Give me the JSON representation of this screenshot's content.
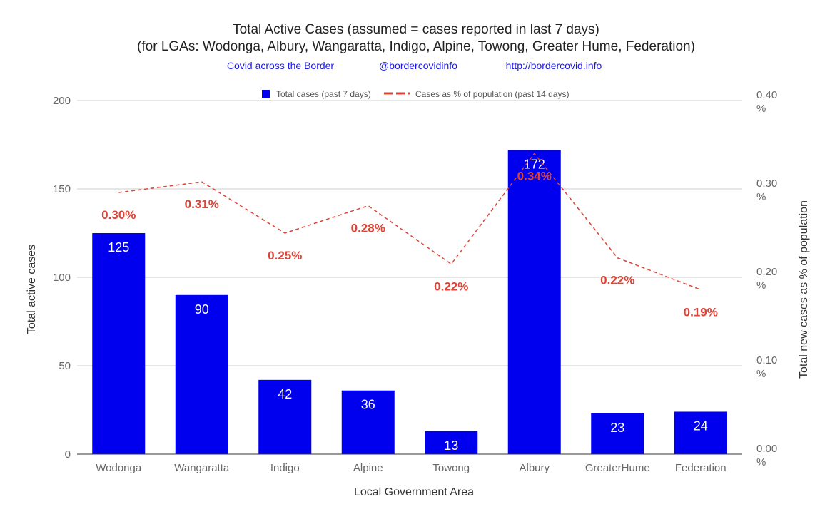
{
  "chart_data": {
    "type": "bar",
    "title": "Total Active Cases (assumed = cases reported in last 7 days)",
    "subtitle": "(for LGAs: Wodonga, Albury, Wangaratta, Indigo, Alpine, Towong, Greater Hume, Federation)",
    "credits": [
      "Covid across the Border",
      "@bordercovidinfo",
      "http://bordercovid.info"
    ],
    "xlabel": "Local Government Area",
    "ylabel": "Total active cases",
    "y2label": "Total new cases as % of population",
    "categories": [
      "Wodonga",
      "Wangaratta",
      "Indigo",
      "Alpine",
      "Towong",
      "Albury",
      "GreaterHume",
      "Federation"
    ],
    "ylim": [
      0,
      200
    ],
    "yticks": [
      "0",
      "50",
      "100",
      "150",
      "200"
    ],
    "y2lim": [
      0,
      0.4
    ],
    "y2ticks": [
      {
        "value": "0.00",
        "unit": "%"
      },
      {
        "value": "0.10",
        "unit": "%"
      },
      {
        "value": "0.20",
        "unit": "%"
      },
      {
        "value": "0.30",
        "unit": "%"
      },
      {
        "value": "0.40",
        "unit": "%"
      }
    ],
    "legend_position": "top",
    "grid": true,
    "series": [
      {
        "name": "Total cases (past 7 days)",
        "type": "bar",
        "axis": "left",
        "color": "#0000ee",
        "values": [
          125,
          90,
          42,
          36,
          13,
          172,
          23,
          24
        ],
        "labels": [
          "125",
          "90",
          "42",
          "36",
          "13",
          "172",
          "23",
          "24"
        ]
      },
      {
        "name": "Cases as % of population (past 14 days)",
        "type": "line",
        "style": "dashed",
        "axis": "right",
        "color": "#db4437",
        "values": [
          0.296,
          0.308,
          0.25,
          0.281,
          0.215,
          0.34,
          0.222,
          0.186
        ],
        "labels": [
          "0.30%",
          "0.31%",
          "0.25%",
          "0.28%",
          "0.22%",
          "0.34%",
          "0.22%",
          "0.19%"
        ]
      }
    ]
  }
}
